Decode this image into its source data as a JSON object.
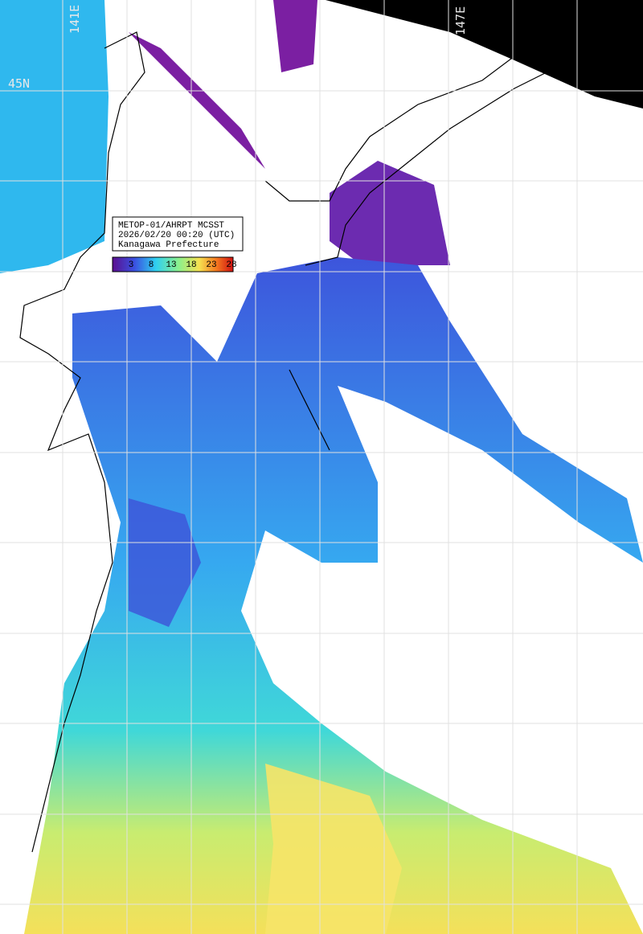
{
  "grid_labels": {
    "lon_left": "141E",
    "lon_right": "147E",
    "lat": "45N"
  },
  "legend": {
    "lines": [
      "METOP-01/AHRPT MCSST",
      "2026/02/20 00:20 (UTC)",
      "Kanagawa Prefecture"
    ],
    "ticks": [
      3,
      8,
      13,
      18,
      23,
      28
    ]
  }
}
